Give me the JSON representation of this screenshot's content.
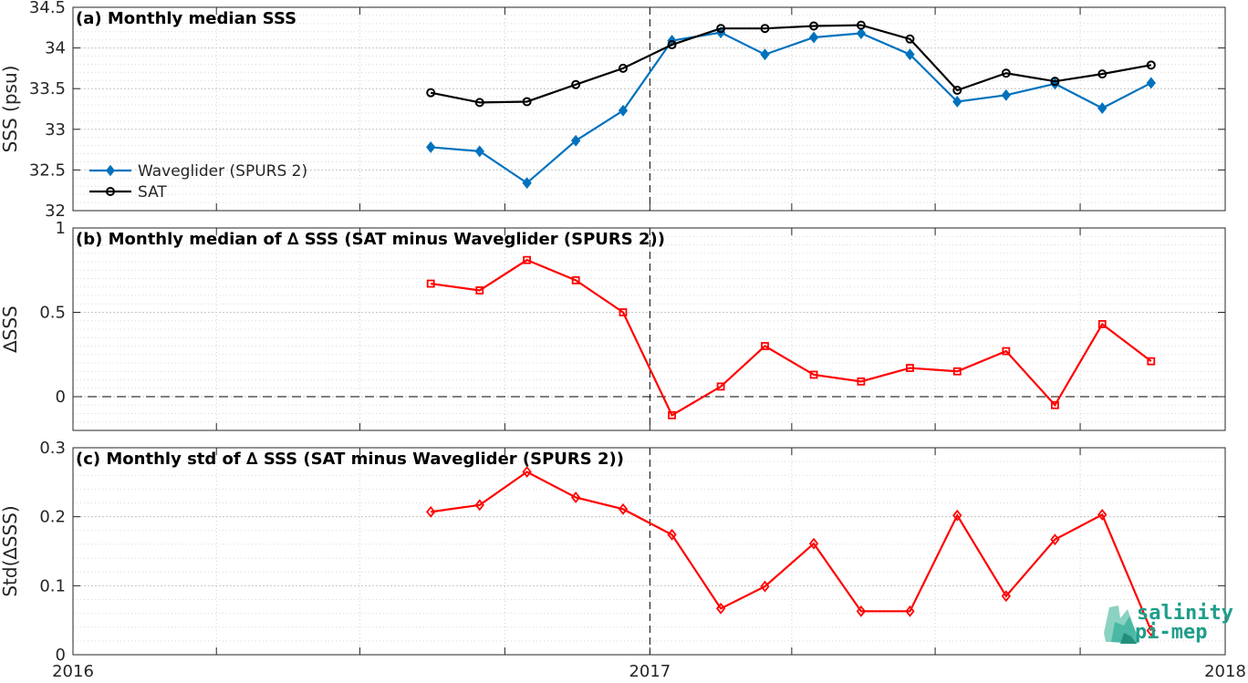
{
  "chart_data": [
    {
      "type": "line",
      "title": "(a) Monthly median SSS",
      "ylabel": "SSS (psu)",
      "xlim": [
        "2016-01-01",
        "2018-01-01"
      ],
      "ylim": [
        32,
        34.5
      ],
      "yticks": [
        "32",
        "32.5",
        "33",
        "33.5",
        "34",
        "34.5"
      ],
      "grid": true,
      "legend_position": "left",
      "series": [
        {
          "name": "Waveglider (SPURS 2)",
          "color": "#0072bd",
          "marker": "diamond",
          "x": [
            "2016-08-15",
            "2016-09-15",
            "2016-10-15",
            "2016-11-15",
            "2016-12-15",
            "2017-01-15",
            "2017-02-15",
            "2017-03-15",
            "2017-04-15",
            "2017-05-15",
            "2017-06-15",
            "2017-07-15",
            "2017-08-15",
            "2017-09-15",
            "2017-10-15",
            "2017-11-15"
          ],
          "values": [
            32.78,
            32.73,
            32.34,
            32.86,
            33.23,
            34.09,
            34.19,
            33.92,
            34.13,
            34.18,
            33.92,
            33.34,
            33.42,
            33.56,
            33.26,
            33.57
          ]
        },
        {
          "name": "SAT",
          "color": "#000000",
          "marker": "circle",
          "x": [
            "2016-08-15",
            "2016-09-15",
            "2016-10-15",
            "2016-11-15",
            "2016-12-15",
            "2017-01-15",
            "2017-02-15",
            "2017-03-15",
            "2017-04-15",
            "2017-05-15",
            "2017-06-15",
            "2017-07-15",
            "2017-08-15",
            "2017-09-15",
            "2017-10-15",
            "2017-11-15"
          ],
          "values": [
            33.45,
            33.33,
            33.34,
            33.55,
            33.75,
            34.04,
            34.24,
            34.24,
            34.27,
            34.28,
            34.11,
            33.48,
            33.69,
            33.59,
            33.68,
            33.79
          ]
        }
      ]
    },
    {
      "type": "line",
      "title": "(b) Monthly median of ∆ SSS (SAT minus Waveglider (SPURS 2))",
      "ylabel": "∆SSS",
      "xlim": [
        "2016-01-01",
        "2018-01-01"
      ],
      "ylim": [
        -0.2,
        1
      ],
      "yticks": [
        "0",
        "0.5",
        "1"
      ],
      "grid": true,
      "series": [
        {
          "color": "#ff0000",
          "marker": "square",
          "x": [
            "2016-08-15",
            "2016-09-15",
            "2016-10-15",
            "2016-11-15",
            "2016-12-15",
            "2017-01-15",
            "2017-02-15",
            "2017-03-15",
            "2017-04-15",
            "2017-05-15",
            "2017-06-15",
            "2017-07-15",
            "2017-08-15",
            "2017-09-15",
            "2017-10-15",
            "2017-11-15"
          ],
          "values": [
            0.67,
            0.63,
            0.81,
            0.69,
            0.5,
            -0.11,
            0.06,
            0.3,
            0.13,
            0.09,
            0.17,
            0.15,
            0.27,
            -0.05,
            0.43,
            0.21
          ]
        }
      ]
    },
    {
      "type": "line",
      "title": "(c) Monthly std of ∆ SSS (SAT minus Waveglider (SPURS 2))",
      "ylabel": "Std(∆SSS)",
      "xlim": [
        "2016-01-01",
        "2018-01-01"
      ],
      "ylim": [
        0,
        0.3
      ],
      "yticks": [
        "0",
        "0.1",
        "0.2",
        "0.3"
      ],
      "xticks": [
        "2016",
        "2017",
        "2018"
      ],
      "grid": true,
      "series": [
        {
          "color": "#ff0000",
          "marker": "diamond",
          "x": [
            "2016-08-15",
            "2016-09-15",
            "2016-10-15",
            "2016-11-15",
            "2016-12-15",
            "2017-01-15",
            "2017-02-15",
            "2017-03-15",
            "2017-04-15",
            "2017-05-15",
            "2017-06-15",
            "2017-07-15",
            "2017-08-15",
            "2017-09-15",
            "2017-10-15",
            "2017-11-15"
          ],
          "values": [
            0.207,
            0.217,
            0.265,
            0.228,
            0.211,
            0.174,
            0.067,
            0.099,
            0.161,
            0.063,
            0.063,
            0.202,
            0.085,
            0.167,
            0.203,
            0.035
          ]
        }
      ]
    }
  ],
  "logo": {
    "line1": "salinity",
    "line2": "pi-mep",
    "color": "#1f9e8a"
  }
}
